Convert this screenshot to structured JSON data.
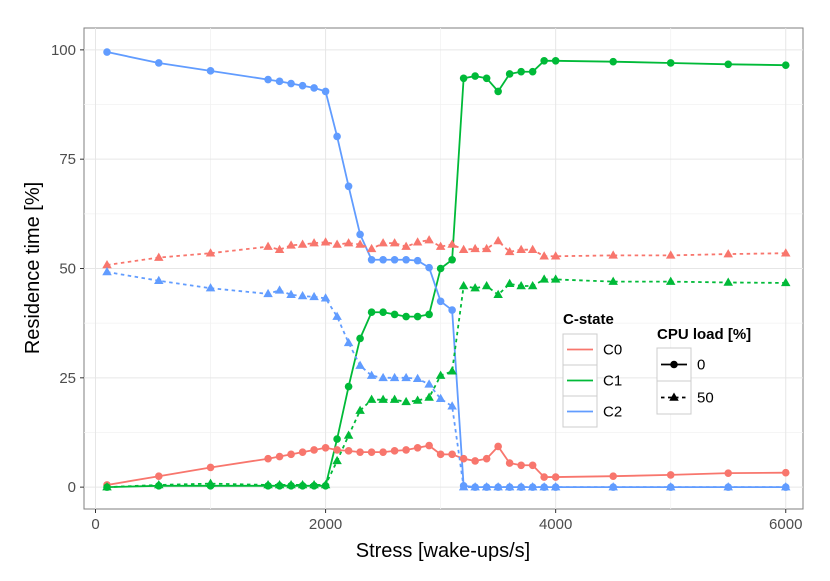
{
  "chart_data": {
    "type": "line",
    "xlabel": "Stress [wake-ups/s]",
    "ylabel": "Residence time [%]",
    "xlim": [
      -100,
      6150
    ],
    "ylim": [
      -5,
      105
    ],
    "x_ticks": [
      0,
      2000,
      4000,
      6000
    ],
    "y_ticks": [
      0,
      25,
      50,
      75,
      100
    ],
    "grid": true,
    "legend_placement": "lower-right-inside",
    "colors": {
      "C0": "#F8766D",
      "C1": "#00BA38",
      "C2": "#619CFF"
    },
    "legend": {
      "color": {
        "title": "C-state",
        "entries": [
          "C0",
          "C1",
          "C2"
        ]
      },
      "shape": {
        "title": "CPU load [%]",
        "entries": [
          "0",
          "50"
        ]
      }
    },
    "series": [
      {
        "state": "C0",
        "load": "0",
        "marker": "circle",
        "linestyle": "solid",
        "x": [
          100,
          550,
          1000,
          1500,
          1600,
          1700,
          1800,
          1900,
          2000,
          2100,
          2200,
          2300,
          2400,
          2500,
          2600,
          2700,
          2800,
          2900,
          3000,
          3100,
          3200,
          3300,
          3400,
          3500,
          3600,
          3700,
          3800,
          3900,
          4000,
          4500,
          5000,
          5500,
          6000
        ],
        "y": [
          0.5,
          2.5,
          4.5,
          6.5,
          7,
          7.5,
          8,
          8.5,
          9,
          8.5,
          8.3,
          8,
          8,
          8,
          8.3,
          8.5,
          9,
          9.5,
          7.5,
          7.5,
          6.5,
          6,
          6.5,
          9.3,
          5.5,
          5,
          5,
          2.3,
          2.3,
          2.5,
          2.8,
          3.2,
          3.3
        ]
      },
      {
        "state": "C1",
        "load": "0",
        "marker": "circle",
        "linestyle": "solid",
        "x": [
          100,
          550,
          1000,
          1500,
          1600,
          1700,
          1800,
          1900,
          2000,
          2100,
          2200,
          2300,
          2400,
          2500,
          2600,
          2700,
          2800,
          2900,
          3000,
          3100,
          3200,
          3300,
          3400,
          3500,
          3600,
          3700,
          3800,
          3900,
          4000,
          4500,
          5000,
          5500,
          6000
        ],
        "y": [
          0,
          0.3,
          0.3,
          0.3,
          0.3,
          0.3,
          0.3,
          0.3,
          0.3,
          11,
          23,
          34,
          40,
          40,
          39.5,
          39,
          39,
          39.5,
          50,
          52,
          93.5,
          94,
          93.5,
          90.5,
          94.5,
          95,
          95,
          97.5,
          97.5,
          97.3,
          97,
          96.7,
          96.5
        ]
      },
      {
        "state": "C2",
        "load": "0",
        "marker": "circle",
        "linestyle": "solid",
        "x": [
          100,
          550,
          1000,
          1500,
          1600,
          1700,
          1800,
          1900,
          2000,
          2100,
          2200,
          2300,
          2400,
          2500,
          2600,
          2700,
          2800,
          2900,
          3000,
          3100,
          3200,
          3300,
          3400,
          3500,
          3600,
          3700,
          3800,
          3900,
          4000,
          4500,
          5000,
          5500,
          6000
        ],
        "y": [
          99.5,
          97,
          95.2,
          93.2,
          92.8,
          92.3,
          91.8,
          91.3,
          90.5,
          80.2,
          68.8,
          57.8,
          52,
          52,
          52,
          52,
          51.8,
          50.2,
          42.5,
          40.5,
          0.3,
          0,
          0,
          0,
          0,
          0,
          0,
          0,
          0,
          0,
          0,
          0,
          0
        ]
      },
      {
        "state": "C0",
        "load": "50",
        "marker": "triangle",
        "linestyle": "dashed",
        "x": [
          100,
          550,
          1000,
          1500,
          1600,
          1700,
          1800,
          1900,
          2000,
          2100,
          2200,
          2300,
          2400,
          2500,
          2600,
          2700,
          2800,
          2900,
          3000,
          3100,
          3200,
          3300,
          3400,
          3500,
          3600,
          3700,
          3800,
          3900,
          4000,
          4500,
          5000,
          5500,
          6000
        ],
        "y": [
          50.8,
          52.5,
          53.5,
          55,
          54.3,
          55.3,
          55.5,
          55.8,
          56,
          55.5,
          55.8,
          55.5,
          54.5,
          55.8,
          55.8,
          55,
          56,
          56.5,
          55,
          55.5,
          54.3,
          54.5,
          54.5,
          56.3,
          53.8,
          54.3,
          54.3,
          52.8,
          52.8,
          53,
          53,
          53.3,
          53.5
        ]
      },
      {
        "state": "C1",
        "load": "50",
        "marker": "triangle",
        "linestyle": "dashed",
        "x": [
          100,
          550,
          1000,
          1500,
          1600,
          1700,
          1800,
          1900,
          2000,
          2100,
          2200,
          2300,
          2400,
          2500,
          2600,
          2700,
          2800,
          2900,
          3000,
          3100,
          3200,
          3300,
          3400,
          3500,
          3600,
          3700,
          3800,
          3900,
          4000,
          4500,
          5000,
          5500,
          6000
        ],
        "y": [
          0,
          0.5,
          0.8,
          0.5,
          0.5,
          0.5,
          0.5,
          0.5,
          0.5,
          6,
          11.8,
          17.5,
          20,
          20,
          20,
          19.5,
          19.8,
          20.5,
          25.5,
          26.5,
          46,
          45.5,
          46,
          44,
          46.5,
          46,
          46,
          47.5,
          47.5,
          47,
          47,
          46.8,
          46.7
        ]
      },
      {
        "state": "C2",
        "load": "50",
        "marker": "triangle",
        "linestyle": "dashed",
        "x": [
          100,
          550,
          1000,
          1500,
          1600,
          1700,
          1800,
          1900,
          2000,
          2100,
          2200,
          2300,
          2400,
          2500,
          2600,
          2700,
          2800,
          2900,
          3000,
          3100,
          3200,
          3300,
          3400,
          3500,
          3600,
          3700,
          3800,
          3900,
          4000,
          4500,
          5000,
          5500,
          6000
        ],
        "y": [
          49.2,
          47.2,
          45.5,
          44.2,
          45,
          44,
          43.7,
          43.5,
          43.2,
          39,
          33,
          27.8,
          25.5,
          25,
          25,
          25,
          24.8,
          23.5,
          20.2,
          18.5,
          0,
          0,
          0,
          0,
          0,
          0,
          0,
          0,
          0,
          0,
          0,
          0,
          0
        ]
      }
    ]
  }
}
